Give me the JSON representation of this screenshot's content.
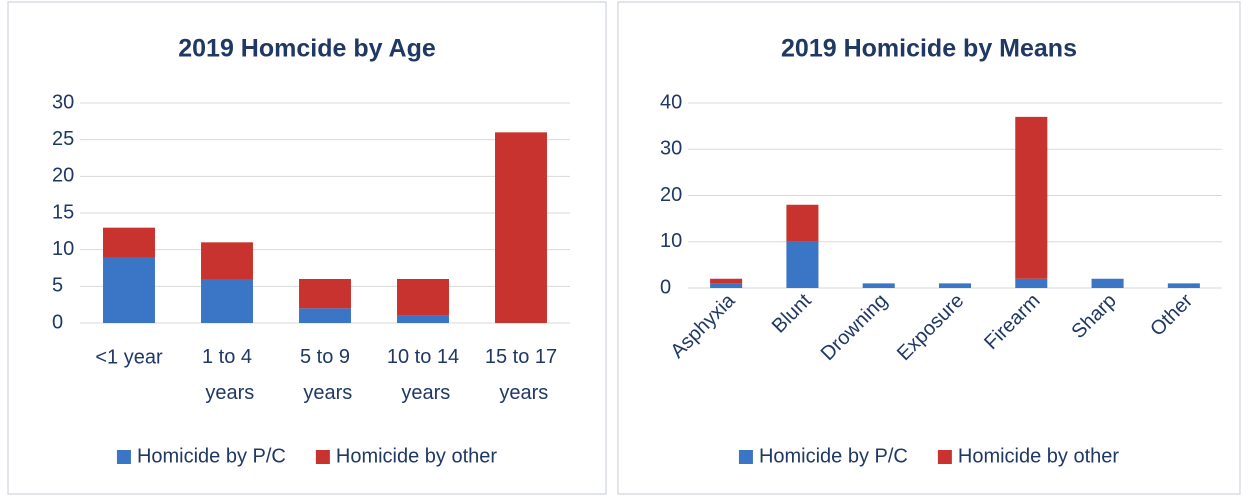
{
  "chart_data": [
    {
      "type": "bar",
      "stacked": true,
      "title": "2019 Homcide by Age",
      "categories": [
        "<1 year",
        "1 to 4 years",
        "5 to 9 years",
        "10 to 14 years",
        "15 to 17 years"
      ],
      "series": [
        {
          "name": "Homicide by P/C",
          "color": "#3b75c6",
          "values": [
            9,
            6,
            2,
            1,
            0
          ]
        },
        {
          "name": "Homicide by other",
          "color": "#c8322f",
          "values": [
            4,
            5,
            4,
            5,
            26
          ]
        }
      ],
      "ylim": [
        0,
        30
      ],
      "yticks": [
        0,
        5,
        10,
        15,
        20,
        25,
        30
      ],
      "grid": true,
      "legend": "bottom"
    },
    {
      "type": "bar",
      "stacked": true,
      "title": "2019 Homicide by Means",
      "categories": [
        "Asphyxia",
        "Blunt",
        "Drowning",
        "Exposure",
        "Firearm",
        "Sharp",
        "Other"
      ],
      "series": [
        {
          "name": "Homicide by P/C",
          "color": "#3b75c6",
          "values": [
            1,
            10,
            1,
            1,
            2,
            2,
            1
          ]
        },
        {
          "name": "Homicide by other",
          "color": "#c8322f",
          "values": [
            1,
            8,
            0,
            0,
            35,
            0,
            0
          ]
        }
      ],
      "ylim": [
        0,
        40
      ],
      "yticks": [
        0,
        10,
        20,
        30,
        40
      ],
      "grid": true,
      "legend": "bottom",
      "rotate_labels": true
    }
  ]
}
